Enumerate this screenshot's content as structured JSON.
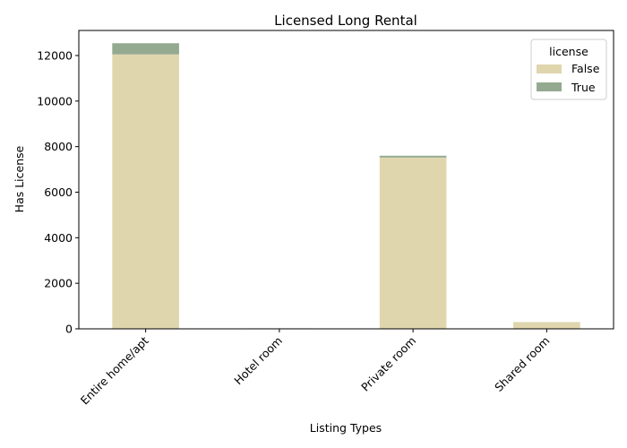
{
  "chart_data": {
    "type": "bar",
    "stacked": true,
    "title": "Licensed Long Rental",
    "xlabel": "Listing Types",
    "ylabel": "Has License",
    "categories": [
      "Entire home/apt",
      "Hotel room",
      "Private room",
      "Shared room"
    ],
    "series": [
      {
        "name": "False",
        "color": "#e0d6ad",
        "values": [
          12050,
          20,
          7520,
          290
        ]
      },
      {
        "name": "True",
        "color": "#94aa90",
        "values": [
          490,
          2,
          80,
          5
        ]
      }
    ],
    "ylim": [
      0,
      13100
    ],
    "yticks": [
      0,
      2000,
      4000,
      6000,
      8000,
      10000,
      12000
    ],
    "ytick_labels": [
      "0",
      "2000",
      "4000",
      "6000",
      "8000",
      "10000",
      "12000"
    ],
    "grid": false,
    "legend": {
      "title": "license",
      "position": "top-right",
      "entries": [
        "False",
        "True"
      ]
    }
  }
}
